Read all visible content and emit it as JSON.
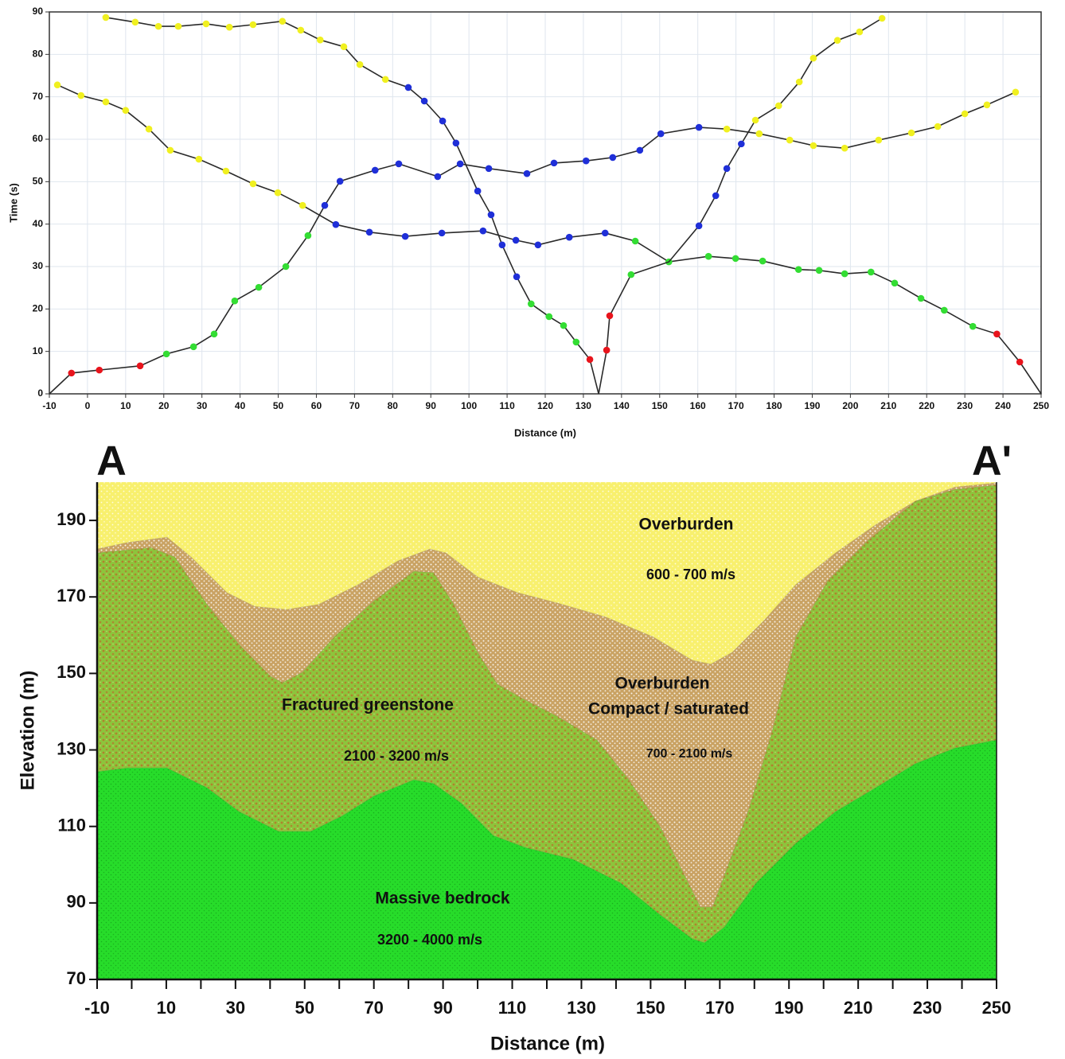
{
  "chart_data": [
    {
      "type": "line",
      "xlabel": "Distance (m)",
      "ylabel": "Time (s)",
      "xlim": [
        -10,
        250
      ],
      "xticks": [
        -10,
        0,
        10,
        20,
        30,
        40,
        50,
        60,
        70,
        80,
        90,
        100,
        110,
        120,
        130,
        140,
        150,
        160,
        170,
        180,
        190,
        200,
        210,
        220,
        230,
        240,
        250
      ],
      "ylim": [
        0,
        90
      ],
      "yticks": [
        0,
        10,
        20,
        30,
        40,
        50,
        60,
        70,
        80,
        90
      ],
      "grid": true,
      "series": [
        {
          "color": "#2a2a2a",
          "x": [
            -10,
            -4.2,
            3.1,
            13.8,
            20.7,
            27.8,
            33.2,
            38.6,
            44.9,
            52,
            57.8,
            62.2,
            66.2,
            75.4,
            81.6,
            91.8,
            97.7,
            105.2,
            115.2,
            122.3,
            130.7,
            137.7,
            144.8,
            150.3,
            160.3,
            167.6,
            176.1,
            184.1,
            190.3,
            198.5,
            207.4,
            216,
            222.9,
            230,
            235.8,
            243.3
          ],
          "values": [
            0,
            4.9,
            5.6,
            6.6,
            9.4,
            11.1,
            14.1,
            21.9,
            25.1,
            30,
            37.3,
            44.4,
            50.1,
            52.7,
            54.2,
            51.2,
            54.2,
            53.1,
            51.9,
            54.4,
            54.9,
            55.7,
            57.4,
            61.3,
            62.8,
            62.4,
            61.3,
            59.8,
            58.5,
            57.9,
            59.8,
            61.5,
            63,
            66,
            68.1,
            71.1
          ],
          "point_colors": [
            null,
            "#e8141c",
            "#e8141c",
            "#e8141c",
            "#33dd33",
            "#33dd33",
            "#33dd33",
            "#33dd33",
            "#33dd33",
            "#33dd33",
            "#33dd33",
            "#1f2fd8",
            "#1f2fd8",
            "#1f2fd8",
            "#1f2fd8",
            "#1f2fd8",
            "#1f2fd8",
            "#1f2fd8",
            "#1f2fd8",
            "#1f2fd8",
            "#1f2fd8",
            "#1f2fd8",
            "#1f2fd8",
            "#1f2fd8",
            "#1f2fd8",
            "#f0f020",
            "#f0f020",
            "#f0f020",
            "#f0f020",
            "#f0f020",
            "#f0f020",
            "#f0f020",
            "#f0f020",
            "#f0f020",
            "#f0f020",
            "#f0f020"
          ]
        },
        {
          "color": "#2a2a2a",
          "x": [
            -7.9,
            -1.7,
            4.8,
            10,
            16.1,
            21.7,
            29.2,
            36.3,
            43.4,
            49.9,
            56.4,
            65.1,
            73.9,
            83.3,
            92.9,
            103.7,
            112.3,
            118.1,
            126.3,
            135.7,
            143.6,
            152.4,
            162.8,
            169.9,
            177,
            186.4,
            191.8,
            198.5,
            205.4,
            211.6,
            218.5,
            224.6,
            232.1,
            238.4,
            244.4,
            250
          ],
          "values": [
            72.8,
            70.3,
            68.8,
            66.8,
            62.4,
            57.4,
            55.3,
            52.5,
            49.5,
            47.4,
            44.4,
            39.9,
            38.1,
            37.1,
            37.9,
            38.4,
            36.2,
            35.1,
            36.9,
            37.9,
            36,
            31.1,
            32.4,
            31.9,
            31.3,
            29.3,
            29.1,
            28.3,
            28.7,
            26.1,
            22.5,
            19.7,
            15.9,
            14.1,
            7.5,
            0
          ],
          "point_colors": [
            "#f0f020",
            "#f0f020",
            "#f0f020",
            "#f0f020",
            "#f0f020",
            "#f0f020",
            "#f0f020",
            "#f0f020",
            "#f0f020",
            "#f0f020",
            "#f0f020",
            "#1f2fd8",
            "#1f2fd8",
            "#1f2fd8",
            "#1f2fd8",
            "#1f2fd8",
            "#1f2fd8",
            "#1f2fd8",
            "#1f2fd8",
            "#1f2fd8",
            "#33dd33",
            "#33dd33",
            "#33dd33",
            "#33dd33",
            "#33dd33",
            "#33dd33",
            "#33dd33",
            "#33dd33",
            "#33dd33",
            "#33dd33",
            "#33dd33",
            "#33dd33",
            "#33dd33",
            "#e8141c",
            "#e8141c",
            null
          ]
        },
        {
          "color": "#2a2a2a",
          "x": [
            4.8,
            12.5,
            18.6,
            23.8,
            31.1,
            37.2,
            43.4,
            51.1,
            55.9,
            61,
            67.2,
            71.4,
            78.1,
            84.1,
            88.3,
            93.1,
            96.6,
            102.3,
            105.8,
            108.7,
            112.5,
            116.3,
            121,
            124.8,
            128.1,
            131.7,
            134
          ],
          "values": [
            88.7,
            87.6,
            86.6,
            86.6,
            87.2,
            86.4,
            87,
            87.8,
            85.7,
            83.4,
            81.8,
            77.6,
            74.1,
            72.2,
            69,
            64.3,
            59.1,
            47.8,
            42.2,
            35.1,
            27.6,
            21.2,
            18.2,
            16.1,
            12.2,
            8.1,
            0
          ],
          "point_colors": [
            "#f0f020",
            "#f0f020",
            "#f0f020",
            "#f0f020",
            "#f0f020",
            "#f0f020",
            "#f0f020",
            "#f0f020",
            "#f0f020",
            "#f0f020",
            "#f0f020",
            "#f0f020",
            "#f0f020",
            "#1f2fd8",
            "#1f2fd8",
            "#1f2fd8",
            "#1f2fd8",
            "#1f2fd8",
            "#1f2fd8",
            "#1f2fd8",
            "#1f2fd8",
            "#33dd33",
            "#33dd33",
            "#33dd33",
            "#33dd33",
            "#e8141c",
            null
          ]
        },
        {
          "color": "#2a2a2a",
          "x": [
            134,
            136.1,
            136.9,
            142.5,
            152.4,
            160.3,
            164.7,
            167.6,
            171.4,
            175.1,
            181.2,
            186.6,
            190.3,
            196.6,
            202.4,
            208.3
          ],
          "values": [
            0,
            10.3,
            18.4,
            28.1,
            31.1,
            39.6,
            46.7,
            53.1,
            58.9,
            64.5,
            67.9,
            73.5,
            79.1,
            83.3,
            85.3,
            88.5
          ],
          "point_colors": [
            null,
            "#e8141c",
            "#e8141c",
            "#33dd33",
            null,
            "#1f2fd8",
            "#1f2fd8",
            "#1f2fd8",
            "#1f2fd8",
            "#f0f020",
            "#f0f020",
            "#f0f020",
            "#f0f020",
            "#f0f020",
            "#f0f020",
            "#f0f020"
          ]
        }
      ]
    },
    {
      "type": "section",
      "left_label": "A",
      "right_label": "A'",
      "xlabel": "Distance (m)",
      "ylabel": "Elevation (m)",
      "xlim": [
        -10,
        250
      ],
      "xticks": [
        -10,
        10,
        30,
        50,
        70,
        90,
        110,
        130,
        150,
        170,
        190,
        210,
        230,
        250
      ],
      "xticks_minor": [
        0,
        20,
        40,
        60,
        80,
        100,
        120,
        140,
        160,
        180,
        200,
        220,
        240
      ],
      "ylim": [
        70,
        200
      ],
      "yticks": [
        70,
        90,
        110,
        130,
        150,
        170,
        190
      ],
      "layers": [
        {
          "labels": [
            "Overburden"
          ],
          "velocity": "600 - 700 m/s",
          "color": "#f8f06e"
        },
        {
          "labels": [
            "Overburden",
            "Compact / saturated"
          ],
          "velocity": "700 - 2100 m/s",
          "color": "#c9a263"
        },
        {
          "labels": [
            "Fractured greenstone"
          ],
          "velocity": "2100 - 3200 m/s",
          "color": "#8dc43c"
        },
        {
          "labels": [
            "Massive bedrock"
          ],
          "velocity": "3200 - 4000 m/s",
          "color": "#27dc2a"
        }
      ],
      "boundaries": [
        {
          "x": [
            -10,
            -1.3,
            10.2,
            17.2,
            27.5,
            35.6,
            44.8,
            54,
            65.5,
            77,
            86.2,
            90.8,
            100,
            111.5,
            123,
            136.8,
            150.6,
            162.1,
            167.4,
            173.6,
            182.8,
            192,
            203.5,
            215,
            226.5,
            238,
            250
          ],
          "values": [
            182.5,
            184.2,
            185.6,
            180.4,
            171.1,
            167.5,
            166.7,
            168,
            173.2,
            179.4,
            182.5,
            181.5,
            175.2,
            171.1,
            168.4,
            164.8,
            159.6,
            153.4,
            152.4,
            155.5,
            163.8,
            173.2,
            181.5,
            188.8,
            195,
            198.7,
            199.8
          ]
        },
        {
          "x": [
            -10,
            5.6,
            12.5,
            21.8,
            31,
            40.2,
            43.6,
            49.4,
            58.6,
            70.1,
            81.6,
            87.3,
            93.1,
            100,
            105.7,
            113.8,
            123,
            134.5,
            143.7,
            152.9,
            159.8,
            164.4,
            167.9,
            171.3,
            178.2,
            185.1,
            192,
            201.2,
            212.7,
            226.5,
            238,
            250
          ],
          "values": [
            181.5,
            182.9,
            180.4,
            168,
            157.6,
            149.2,
            147.6,
            150.3,
            159.6,
            169,
            176.7,
            176.3,
            168,
            155.5,
            147.2,
            143,
            138.8,
            132.6,
            122.2,
            109.7,
            97.2,
            88.9,
            88.9,
            97.2,
            113.9,
            134.7,
            159.6,
            174.2,
            184.6,
            195,
            198.1,
            199.2
          ]
        },
        {
          "x": [
            -10,
            -1.3,
            10.2,
            21.8,
            31,
            42.5,
            51.7,
            60.9,
            70.1,
            81.6,
            87.3,
            95.4,
            104.6,
            113.8,
            127.6,
            141.4,
            152.9,
            162.1,
            165.6,
            171.3,
            180.5,
            192,
            203.5,
            215,
            226.5,
            238,
            250
          ],
          "values": [
            124.3,
            125.3,
            125.3,
            120.1,
            113.9,
            108.7,
            108.7,
            112.8,
            118,
            122.2,
            121.2,
            116,
            107.6,
            104.5,
            101.4,
            95.2,
            86.8,
            80.6,
            79.6,
            83.7,
            95.2,
            105.6,
            113.9,
            120.1,
            126.4,
            130.5,
            132.6
          ]
        }
      ]
    }
  ]
}
